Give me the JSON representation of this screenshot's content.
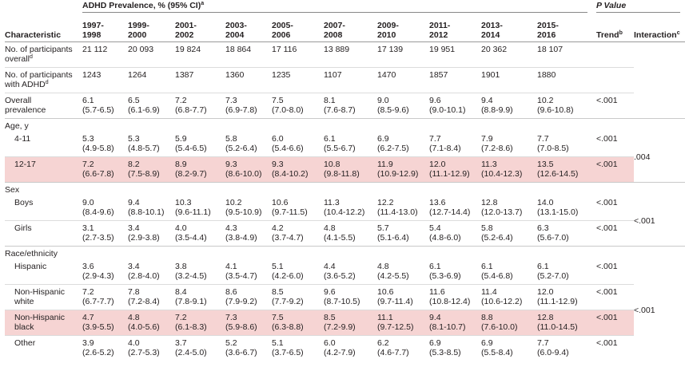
{
  "header": {
    "group_title": "ADHD Prevalence, % (95% CI)",
    "group_note": "a",
    "p_value": "P Value",
    "characteristic": "Characteristic",
    "years": [
      [
        "1997-",
        "1998"
      ],
      [
        "1999-",
        "2000"
      ],
      [
        "2001-",
        "2002"
      ],
      [
        "2003-",
        "2004"
      ],
      [
        "2005-",
        "2006"
      ],
      [
        "2007-",
        "2008"
      ],
      [
        "2009-",
        "2010"
      ],
      [
        "2011-",
        "2012"
      ],
      [
        "2013-",
        "2014"
      ],
      [
        "2015-",
        "2016"
      ]
    ],
    "trend": "Trend",
    "trend_note": "b",
    "interaction": "Interaction",
    "interaction_note": "c"
  },
  "groups": [
    {
      "rows": [
        {
          "label": "No. of participants overall",
          "label_note": "d",
          "counts": [
            "21 112",
            "20 093",
            "19 824",
            "18 864",
            "17 116",
            "13 889",
            "17 139",
            "19 951",
            "20 362",
            "18 107"
          ]
        },
        {
          "label": "No. of participants with ADHD",
          "label_note": "d",
          "counts": [
            "1243",
            "1264",
            "1387",
            "1360",
            "1235",
            "1107",
            "1470",
            "1857",
            "1901",
            "1880"
          ]
        },
        {
          "label": "Overall prevalence",
          "cells": [
            {
              "estimate": "6.1",
              "ci": "(5.7-6.5)"
            },
            {
              "estimate": "6.5",
              "ci": "(6.1-6.9)"
            },
            {
              "estimate": "7.2",
              "ci": "(6.8-7.7)"
            },
            {
              "estimate": "7.3",
              "ci": "(6.9-7.8)"
            },
            {
              "estimate": "7.5",
              "ci": "(7.0-8.0)"
            },
            {
              "estimate": "8.1",
              "ci": "(7.6-8.7)"
            },
            {
              "estimate": "9.0",
              "ci": "(8.5-9.6)"
            },
            {
              "estimate": "9.6",
              "ci": "(9.0-10.1)"
            },
            {
              "estimate": "9.4",
              "ci": "(8.8-9.9)"
            },
            {
              "estimate": "10.2",
              "ci": "(9.6-10.8)"
            }
          ],
          "trend": "<.001"
        }
      ]
    },
    {
      "title": "Age, y",
      "interaction": ".004",
      "rows": [
        {
          "label": "4-11",
          "indent": true,
          "cells": [
            {
              "estimate": "5.3",
              "ci": "(4.9-5.8)"
            },
            {
              "estimate": "5.3",
              "ci": "(4.8-5.7)"
            },
            {
              "estimate": "5.9",
              "ci": "(5.4-6.5)"
            },
            {
              "estimate": "5.8",
              "ci": "(5.2-6.4)"
            },
            {
              "estimate": "6.0",
              "ci": "(5.4-6.6)"
            },
            {
              "estimate": "6.1",
              "ci": "(5.5-6.7)"
            },
            {
              "estimate": "6.9",
              "ci": "(6.2-7.5)"
            },
            {
              "estimate": "7.7",
              "ci": "(7.1-8.4)"
            },
            {
              "estimate": "7.9",
              "ci": "(7.2-8.6)"
            },
            {
              "estimate": "7.7",
              "ci": "(7.0-8.5)"
            }
          ],
          "trend": "<.001"
        },
        {
          "label": "12-17",
          "indent": true,
          "highlight": true,
          "cells": [
            {
              "estimate": "7.2",
              "ci": "(6.6-7.8)"
            },
            {
              "estimate": "8.2",
              "ci": "(7.5-8.9)"
            },
            {
              "estimate": "8.9",
              "ci": "(8.2-9.7)"
            },
            {
              "estimate": "9.3",
              "ci": "(8.6-10.0)"
            },
            {
              "estimate": "9.3",
              "ci": "(8.4-10.2)"
            },
            {
              "estimate": "10.8",
              "ci": "(9.8-11.8)"
            },
            {
              "estimate": "11.9",
              "ci": "(10.9-12.9)"
            },
            {
              "estimate": "12.0",
              "ci": "(11.1-12.9)"
            },
            {
              "estimate": "11.3",
              "ci": "(10.4-12.3)"
            },
            {
              "estimate": "13.5",
              "ci": "(12.6-14.5)"
            }
          ],
          "trend": "<.001"
        }
      ]
    },
    {
      "title": "Sex",
      "interaction": "<.001",
      "rows": [
        {
          "label": "Boys",
          "indent": true,
          "cells": [
            {
              "estimate": "9.0",
              "ci": "(8.4-9.6)"
            },
            {
              "estimate": "9.4",
              "ci": "(8.8-10.1)"
            },
            {
              "estimate": "10.3",
              "ci": "(9.6-11.1)"
            },
            {
              "estimate": "10.2",
              "ci": "(9.5-10.9)"
            },
            {
              "estimate": "10.6",
              "ci": "(9.7-11.5)"
            },
            {
              "estimate": "11.3",
              "ci": "(10.4-12.2)"
            },
            {
              "estimate": "12.2",
              "ci": "(11.4-13.0)"
            },
            {
              "estimate": "13.6",
              "ci": "(12.7-14.4)"
            },
            {
              "estimate": "12.8",
              "ci": "(12.0-13.7)"
            },
            {
              "estimate": "14.0",
              "ci": "(13.1-15.0)"
            }
          ],
          "trend": "<.001"
        },
        {
          "label": "Girls",
          "indent": true,
          "cells": [
            {
              "estimate": "3.1",
              "ci": "(2.7-3.5)"
            },
            {
              "estimate": "3.4",
              "ci": "(2.9-3.8)"
            },
            {
              "estimate": "4.0",
              "ci": "(3.5-4.4)"
            },
            {
              "estimate": "4.3",
              "ci": "(3.8-4.9)"
            },
            {
              "estimate": "4.2",
              "ci": "(3.7-4.7)"
            },
            {
              "estimate": "4.8",
              "ci": "(4.1-5.5)"
            },
            {
              "estimate": "5.7",
              "ci": "(5.1-6.4)"
            },
            {
              "estimate": "5.4",
              "ci": "(4.8-6.0)"
            },
            {
              "estimate": "5.8",
              "ci": "(5.2-6.4)"
            },
            {
              "estimate": "6.3",
              "ci": "(5.6-7.0)"
            }
          ],
          "trend": "<.001"
        }
      ]
    },
    {
      "title": "Race/ethnicity",
      "interaction": "<.001",
      "rows": [
        {
          "label": "Hispanic",
          "indent": true,
          "cells": [
            {
              "estimate": "3.6",
              "ci": "(2.9-4.3)"
            },
            {
              "estimate": "3.4",
              "ci": "(2.8-4.0)"
            },
            {
              "estimate": "3.8",
              "ci": "(3.2-4.5)"
            },
            {
              "estimate": "4.1",
              "ci": "(3.5-4.7)"
            },
            {
              "estimate": "5.1",
              "ci": "(4.2-6.0)"
            },
            {
              "estimate": "4.4",
              "ci": "(3.6-5.2)"
            },
            {
              "estimate": "4.8",
              "ci": "(4.2-5.5)"
            },
            {
              "estimate": "6.1",
              "ci": "(5.3-6.9)"
            },
            {
              "estimate": "6.1",
              "ci": "(5.4-6.8)"
            },
            {
              "estimate": "6.1",
              "ci": "(5.2-7.0)"
            }
          ],
          "trend": "<.001"
        },
        {
          "label": "Non-Hispanic white",
          "indent": true,
          "cells": [
            {
              "estimate": "7.2",
              "ci": "(6.7-7.7)"
            },
            {
              "estimate": "7.8",
              "ci": "(7.2-8.4)"
            },
            {
              "estimate": "8.4",
              "ci": "(7.8-9.1)"
            },
            {
              "estimate": "8.6",
              "ci": "(7.9-9.2)"
            },
            {
              "estimate": "8.5",
              "ci": "(7.7-9.2)"
            },
            {
              "estimate": "9.6",
              "ci": "(8.7-10.5)"
            },
            {
              "estimate": "10.6",
              "ci": "(9.7-11.4)"
            },
            {
              "estimate": "11.6",
              "ci": "(10.8-12.4)"
            },
            {
              "estimate": "11.4",
              "ci": "(10.6-12.2)"
            },
            {
              "estimate": "12.0",
              "ci": "(11.1-12.9)"
            }
          ],
          "trend": "<.001"
        },
        {
          "label": "Non-Hispanic black",
          "indent": true,
          "highlight": true,
          "cells": [
            {
              "estimate": "4.7",
              "ci": "(3.9-5.5)"
            },
            {
              "estimate": "4.8",
              "ci": "(4.0-5.6)"
            },
            {
              "estimate": "7.2",
              "ci": "(6.1-8.3)"
            },
            {
              "estimate": "7.3",
              "ci": "(5.9-8.6)"
            },
            {
              "estimate": "7.5",
              "ci": "(6.3-8.8)"
            },
            {
              "estimate": "8.5",
              "ci": "(7.2-9.9)"
            },
            {
              "estimate": "11.1",
              "ci": "(9.7-12.5)"
            },
            {
              "estimate": "9.4",
              "ci": "(8.1-10.7)"
            },
            {
              "estimate": "8.8",
              "ci": "(7.6-10.0)"
            },
            {
              "estimate": "12.8",
              "ci": "(11.0-14.5)"
            }
          ],
          "trend": "<.001"
        },
        {
          "label": "Other",
          "indent": true,
          "cells": [
            {
              "estimate": "3.9",
              "ci": "(2.6-5.2)"
            },
            {
              "estimate": "4.0",
              "ci": "(2.7-5.3)"
            },
            {
              "estimate": "3.7",
              "ci": "(2.4-5.0)"
            },
            {
              "estimate": "5.2",
              "ci": "(3.6-6.7)"
            },
            {
              "estimate": "5.1",
              "ci": "(3.7-6.5)"
            },
            {
              "estimate": "6.0",
              "ci": "(4.2-7.9)"
            },
            {
              "estimate": "6.2",
              "ci": "(4.6-7.7)"
            },
            {
              "estimate": "6.9",
              "ci": "(5.3-8.5)"
            },
            {
              "estimate": "6.9",
              "ci": "(5.5-8.4)"
            },
            {
              "estimate": "7.7",
              "ci": "(6.0-9.4)"
            }
          ],
          "trend": "<.001"
        }
      ]
    }
  ]
}
